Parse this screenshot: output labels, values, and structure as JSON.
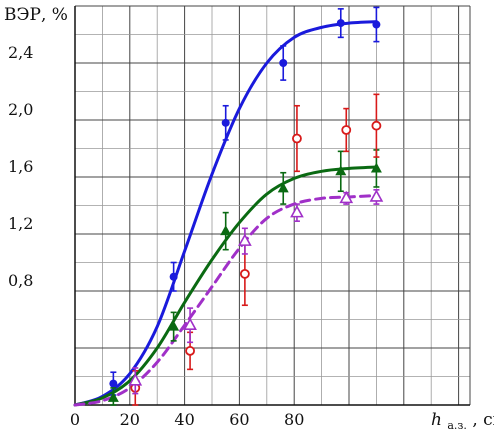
{
  "chart_data": {
    "type": "scatter",
    "title": "",
    "ylabel": "ВЭР, %",
    "xlabel_main": "h",
    "xlabel_sub": "а.з.",
    "xlabel_unit": ", см",
    "xlim": [
      0,
      100
    ],
    "ylim": [
      0,
      2.8
    ],
    "x_ticks": [
      0,
      20,
      40,
      60,
      80
    ],
    "x_tick_labels": [
      "0",
      "20",
      "40",
      "60",
      "80"
    ],
    "y_ticks": [
      0.8,
      1.2,
      1.6,
      2.0,
      2.4
    ],
    "y_tick_labels": [
      "0,8",
      "1,2",
      "1,6",
      "2,0",
      "2,4"
    ],
    "grid": true,
    "series": [
      {
        "marker": "filled-circle",
        "color": "#1a1adc",
        "points": [
          {
            "x": 14,
            "y": 0.15,
            "err": 0.08
          },
          {
            "x": 36,
            "y": 0.9,
            "err": 0.1
          },
          {
            "x": 55,
            "y": 1.98,
            "err": 0.12
          },
          {
            "x": 76,
            "y": 2.4,
            "err": 0.12
          },
          {
            "x": 97,
            "y": 2.68,
            "err": 0.1
          },
          {
            "x": 110,
            "y": 2.67,
            "err": 0.12
          }
        ],
        "curve": {
          "style": "solid",
          "points": [
            [
              0,
              0
            ],
            [
              10,
              0.06
            ],
            [
              20,
              0.22
            ],
            [
              30,
              0.55
            ],
            [
              40,
              1.08
            ],
            [
              50,
              1.62
            ],
            [
              60,
              2.08
            ],
            [
              70,
              2.4
            ],
            [
              80,
              2.58
            ],
            [
              90,
              2.65
            ],
            [
              100,
              2.68
            ],
            [
              110,
              2.69
            ]
          ]
        }
      },
      {
        "marker": "filled-triangle",
        "color": "#0a6a12",
        "points": [
          {
            "x": 14,
            "y": 0.05,
            "err": 0.07
          },
          {
            "x": 36,
            "y": 0.55,
            "err": 0.1
          },
          {
            "x": 55,
            "y": 1.22,
            "err": 0.13
          },
          {
            "x": 76,
            "y": 1.52,
            "err": 0.11
          },
          {
            "x": 97,
            "y": 1.64,
            "err": 0.14
          },
          {
            "x": 110,
            "y": 1.66,
            "err": 0.13
          }
        ],
        "curve": {
          "style": "solid",
          "points": [
            [
              0,
              0
            ],
            [
              10,
              0.05
            ],
            [
              20,
              0.17
            ],
            [
              30,
              0.4
            ],
            [
              40,
              0.72
            ],
            [
              50,
              1.02
            ],
            [
              60,
              1.28
            ],
            [
              70,
              1.48
            ],
            [
              80,
              1.59
            ],
            [
              90,
              1.64
            ],
            [
              100,
              1.66
            ],
            [
              110,
              1.67
            ]
          ]
        }
      },
      {
        "marker": "open-circle",
        "color": "#d81a1a",
        "points": [
          {
            "x": 22,
            "y": 0.12,
            "err": 0.12
          },
          {
            "x": 42,
            "y": 0.38,
            "err": 0.13
          },
          {
            "x": 62,
            "y": 0.92,
            "err": 0.22
          },
          {
            "x": 81,
            "y": 1.87,
            "err": 0.23
          },
          {
            "x": 99,
            "y": 1.93,
            "err": 0.15
          },
          {
            "x": 110,
            "y": 1.96,
            "err": 0.22
          }
        ]
      },
      {
        "marker": "open-triangle",
        "color": "#a030c8",
        "points": [
          {
            "x": 22,
            "y": 0.17,
            "err": 0.09
          },
          {
            "x": 42,
            "y": 0.56,
            "err": 0.12
          },
          {
            "x": 62,
            "y": 1.15,
            "err": 0.09
          },
          {
            "x": 81,
            "y": 1.35,
            "err": 0.06
          },
          {
            "x": 99,
            "y": 1.45,
            "err": 0.04
          },
          {
            "x": 110,
            "y": 1.46,
            "err": 0.05
          }
        ],
        "curve": {
          "style": "dashed",
          "points": [
            [
              0,
              0
            ],
            [
              10,
              0.03
            ],
            [
              20,
              0.12
            ],
            [
              30,
              0.3
            ],
            [
              40,
              0.56
            ],
            [
              50,
              0.83
            ],
            [
              60,
              1.1
            ],
            [
              70,
              1.31
            ],
            [
              80,
              1.41
            ],
            [
              90,
              1.45
            ],
            [
              100,
              1.46
            ],
            [
              110,
              1.47
            ]
          ]
        }
      }
    ]
  }
}
